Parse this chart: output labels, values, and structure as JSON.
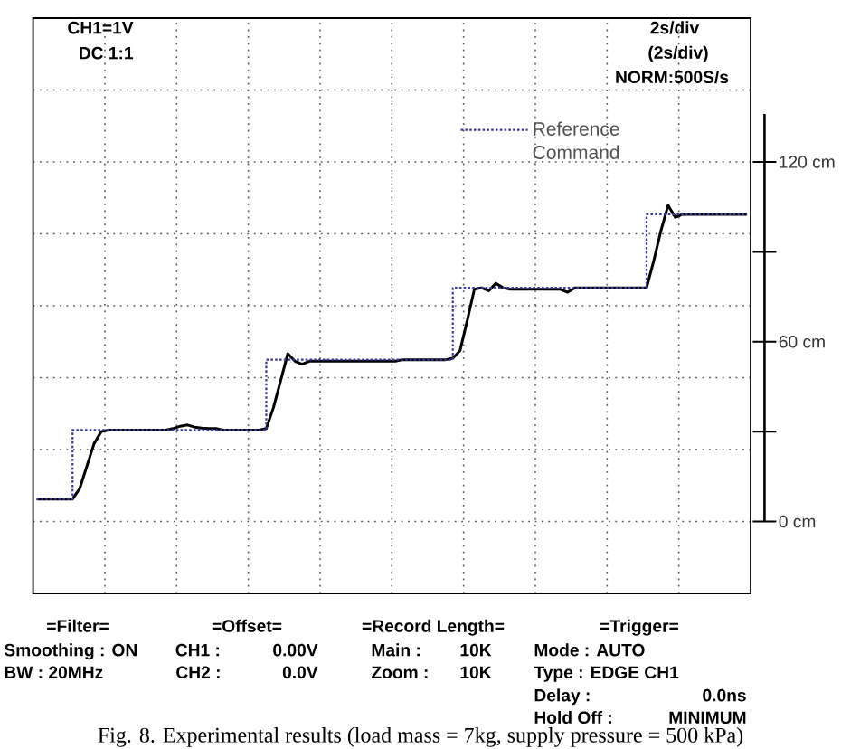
{
  "chart_data": {
    "type": "line",
    "annotations": [
      "CH1=1V",
      "DC 1:1",
      "2s/div",
      "(2s/div)",
      "NORM:500S/s",
      "=Filter=",
      "Smoothing : ON",
      "BW : 20MHz",
      "=Offset=",
      "CH1 :",
      "0.00V",
      "CH2 :",
      "0.0V",
      "=Record Length=",
      "Main :",
      "10K",
      "Zoom :",
      "10K",
      "=Trigger=",
      "Mode : AUTO",
      "Type : EDGE CH1",
      "Delay :",
      "0.0ns",
      "Hold Off :",
      "MINIMUM",
      "Fig. 8. Experimental results (load mass = 7kg, supply pressure = 500 kPa)"
    ],
    "categories": [
      null,
      null,
      null,
      null,
      null,
      null,
      null,
      null,
      null,
      null,
      null,
      null,
      null,
      null,
      null,
      null,
      null,
      null,
      null,
      null,
      null,
      null,
      null,
      null,
      null,
      null,
      null,
      null,
      null,
      null,
      null,
      null,
      null,
      null,
      null,
      null,
      null,
      null,
      null,
      null,
      null,
      null,
      null,
      null,
      null,
      null,
      null,
      null,
      null,
      null,
      null,
      null,
      null,
      null,
      null,
      null,
      null,
      null,
      null,
      null,
      null,
      null,
      null,
      null,
      null,
      null,
      null,
      null,
      null,
      null,
      null,
      null,
      null,
      null,
      null,
      null,
      null,
      null,
      null,
      null,
      null,
      null,
      null,
      null,
      null,
      null,
      null,
      null,
      null,
      null,
      null,
      null,
      null,
      null,
      null,
      null,
      null,
      null,
      null,
      null
    ],
    "series": [
      {
        "color": "#000000",
        "line_style": "solid",
        "values": [
          7.5,
          7.5,
          7.5,
          7.5,
          7.5,
          7.5,
          11,
          18.5,
          26,
          30,
          30.5,
          30.5,
          30.5,
          30.5,
          30.5,
          30.5,
          30.5,
          30.5,
          30.5,
          31,
          31.8,
          32.2,
          31.5,
          31.2,
          31,
          31,
          30.5,
          30.5,
          30.5,
          30.5,
          30.5,
          30.5,
          31,
          38,
          47,
          56,
          53.5,
          52.5,
          53.5,
          53.5,
          53.5,
          53.5,
          53.5,
          53.5,
          53.5,
          53.5,
          53.5,
          53.5,
          53.5,
          53.5,
          53.5,
          54,
          54,
          54,
          54,
          54,
          54,
          54,
          54.5,
          57,
          67,
          77.5,
          78,
          77,
          79.5,
          78,
          77.5,
          77.5,
          77.5,
          77.5,
          77.5,
          77.5,
          77.5,
          77.5,
          76.5,
          78,
          78,
          78,
          78,
          78,
          78,
          78,
          78,
          78,
          78,
          78,
          87,
          97,
          105.5,
          101.5,
          102.5,
          102.5,
          102.5,
          102.5,
          102.5,
          102.5,
          102.5,
          102.5,
          102.5,
          102.5
        ]
      },
      {
        "name": "Reference Command",
        "type": "step",
        "color": "#3a3a96",
        "line_style": "dotted",
        "values": [
          7.5,
          7.5,
          7.5,
          7.5,
          7.5,
          30.5,
          30.5,
          30.5,
          30.5,
          30.5,
          30.5,
          30.5,
          30.5,
          30.5,
          30.5,
          30.5,
          30.5,
          30.5,
          30.5,
          30.5,
          30.5,
          30.5,
          30.5,
          30.5,
          30.5,
          30.5,
          30.5,
          30.5,
          30.5,
          30.5,
          30.5,
          30.5,
          54,
          54,
          54,
          54,
          54,
          54,
          54,
          54,
          54,
          54,
          54,
          54,
          54,
          54,
          54,
          54,
          54,
          54,
          54,
          54,
          54,
          54,
          54,
          54,
          54,
          54,
          78,
          78,
          78,
          78,
          78,
          78,
          78,
          78,
          78,
          78,
          78,
          78,
          78,
          78,
          78,
          78,
          78,
          78,
          78,
          78,
          78,
          78,
          78,
          78,
          78,
          78,
          78,
          102.5,
          102.5,
          102.5,
          102.5,
          102.5,
          102.5,
          102.5,
          102.5,
          102.5,
          102.5,
          102.5,
          102.5,
          102.5,
          102.5,
          102.5
        ]
      }
    ],
    "ylim": [
      -24,
      168
    ],
    "yticks": [
      {
        "value": 0,
        "label": "0 cm"
      },
      {
        "value": 30,
        "label": null
      },
      {
        "value": 60,
        "label": "60 cm"
      },
      {
        "value": 90,
        "label": null
      },
      {
        "value": 120,
        "label": "120 cm"
      }
    ],
    "grid": true,
    "legend": "top right"
  }
}
